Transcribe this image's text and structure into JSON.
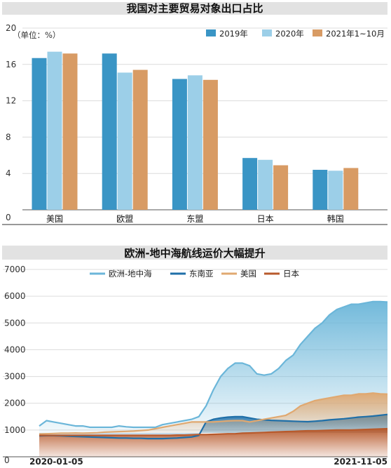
{
  "chart_data": [
    {
      "type": "bar",
      "title": "我国对主要贸易对象出口占比",
      "unit_note": "（单位：%）",
      "ylim": [
        0,
        20
      ],
      "yticks": [
        0,
        4,
        8,
        12,
        16,
        20
      ],
      "categories": [
        "美国",
        "欧盟",
        "东盟",
        "日本",
        "韩国"
      ],
      "legend_position": "top-right",
      "series": [
        {
          "name": "2019年",
          "color": "#3a95c5",
          "values": [
            16.7,
            17.2,
            14.4,
            5.7,
            4.4
          ]
        },
        {
          "name": "2020年",
          "color": "#9ccfe8",
          "values": [
            17.4,
            15.1,
            14.8,
            5.5,
            4.3
          ]
        },
        {
          "name": "2021年1~10月",
          "color": "#d89b64",
          "values": [
            17.2,
            15.4,
            14.3,
            4.9,
            4.6
          ]
        }
      ]
    },
    {
      "type": "area",
      "title": "欧洲-地中海航线运价大幅提升",
      "ylim": [
        0,
        7000
      ],
      "yticks": [
        0,
        1000,
        2000,
        3000,
        4000,
        5000,
        6000,
        7000
      ],
      "x_start": "2020-01-05",
      "x_end": "2021-11-05",
      "legend_position": "top",
      "series": [
        {
          "name": "欧洲-地中海",
          "color": "#6bb6d9",
          "values": [
            1150,
            1350,
            1300,
            1250,
            1200,
            1150,
            1150,
            1100,
            1100,
            1100,
            1100,
            1150,
            1120,
            1100,
            1100,
            1100,
            1100,
            1200,
            1250,
            1300,
            1350,
            1400,
            1500,
            1900,
            2500,
            3000,
            3300,
            3500,
            3500,
            3400,
            3100,
            3050,
            3100,
            3300,
            3600,
            3800,
            4200,
            4500,
            4800,
            5000,
            5300,
            5500,
            5600,
            5700,
            5700,
            5750,
            5800,
            5800,
            5780
          ]
        },
        {
          "name": "东南亚",
          "color": "#1f6fa8",
          "values": [
            780,
            790,
            790,
            780,
            770,
            760,
            750,
            740,
            730,
            720,
            710,
            700,
            700,
            690,
            690,
            680,
            680,
            680,
            690,
            700,
            720,
            740,
            800,
            1300,
            1400,
            1450,
            1480,
            1500,
            1500,
            1450,
            1400,
            1380,
            1360,
            1350,
            1340,
            1330,
            1320,
            1310,
            1330,
            1350,
            1380,
            1400,
            1420,
            1450,
            1480,
            1500,
            1520,
            1550,
            1580
          ]
        },
        {
          "name": "美国",
          "color": "#e0a870",
          "values": [
            850,
            860,
            870,
            880,
            880,
            890,
            880,
            890,
            900,
            920,
            930,
            940,
            950,
            960,
            980,
            1000,
            1050,
            1100,
            1150,
            1200,
            1250,
            1300,
            1300,
            1300,
            1300,
            1320,
            1340,
            1350,
            1350,
            1300,
            1350,
            1400,
            1450,
            1500,
            1550,
            1700,
            1900,
            2000,
            2100,
            2150,
            2200,
            2250,
            2300,
            2300,
            2350,
            2350,
            2380,
            2350,
            2340
          ]
        },
        {
          "name": "日本",
          "color": "#b85a2c",
          "values": [
            800,
            800,
            800,
            800,
            800,
            800,
            800,
            800,
            800,
            800,
            800,
            800,
            800,
            800,
            800,
            800,
            800,
            800,
            800,
            810,
            810,
            820,
            830,
            830,
            840,
            850,
            860,
            860,
            880,
            890,
            900,
            910,
            920,
            930,
            940,
            950,
            960,
            970,
            970,
            980,
            990,
            1000,
            1000,
            1000,
            1010,
            1020,
            1030,
            1040,
            1050
          ]
        }
      ]
    }
  ]
}
